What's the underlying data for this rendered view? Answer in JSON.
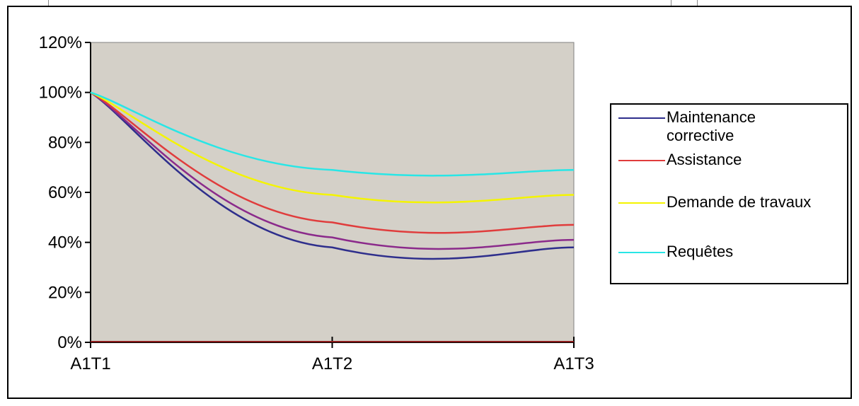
{
  "chart_data": {
    "type": "line",
    "categories": [
      "A1T1",
      "A1T2",
      "A1T3"
    ],
    "y_ticks": [
      "0%",
      "20%",
      "40%",
      "60%",
      "80%",
      "100%",
      "120%"
    ],
    "ylim": [
      0,
      120
    ],
    "plot_background": "#d4d0c8",
    "series": [
      {
        "name": "Maintenance corrective",
        "color": "#2e2e8c",
        "values": [
          100,
          38,
          38
        ]
      },
      {
        "name": "",
        "color": "#8b2a8b",
        "values": [
          100,
          42,
          41
        ]
      },
      {
        "name": "Assistance",
        "color": "#e03c3c",
        "values": [
          100,
          48,
          47
        ]
      },
      {
        "name": "Demande de travaux",
        "color": "#f4f400",
        "values": [
          100,
          59,
          59
        ]
      },
      {
        "name": "Requêtes",
        "color": "#28e6e6",
        "values": [
          100,
          69,
          69
        ]
      }
    ],
    "legend": {
      "position": "right",
      "entries": [
        {
          "label_line1": "Maintenance",
          "label_line2": "corrective",
          "color": "#2e2e8c"
        },
        {
          "label_line1": "Assistance",
          "label_line2": "",
          "color": "#e03c3c"
        },
        {
          "label_line1": "Demande de travaux",
          "label_line2": "",
          "color": "#f4f400"
        },
        {
          "label_line1": "Requêtes",
          "label_line2": "",
          "color": "#28e6e6"
        }
      ]
    }
  }
}
